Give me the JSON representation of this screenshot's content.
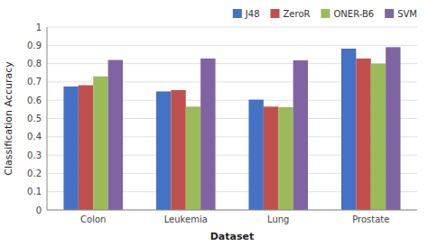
{
  "chart_data": {
    "type": "bar",
    "xlabel": "Dataset",
    "ylabel": "Classification Accuracy",
    "categories": [
      "Colon",
      "Leukemia",
      "Lung",
      "Prostate"
    ],
    "series": [
      {
        "name": "J48",
        "color": "#4472C4",
        "values": [
          0.675,
          0.648,
          0.603,
          0.882
        ]
      },
      {
        "name": "ZeroR",
        "color": "#C0504D",
        "values": [
          0.682,
          0.655,
          0.565,
          0.828
        ]
      },
      {
        "name": "ONER-B6",
        "color": "#9BBB59",
        "values": [
          0.73,
          0.565,
          0.562,
          0.8
        ]
      },
      {
        "name": "SVM",
        "color": "#8064A2",
        "values": [
          0.82,
          0.828,
          0.818,
          0.89
        ]
      }
    ],
    "ylim": [
      0,
      1
    ],
    "yticks": [
      0,
      0.1,
      0.2,
      0.3,
      0.4,
      0.5,
      0.6,
      0.7,
      0.8,
      0.9,
      1
    ],
    "grid": true,
    "legend": "upper right"
  }
}
